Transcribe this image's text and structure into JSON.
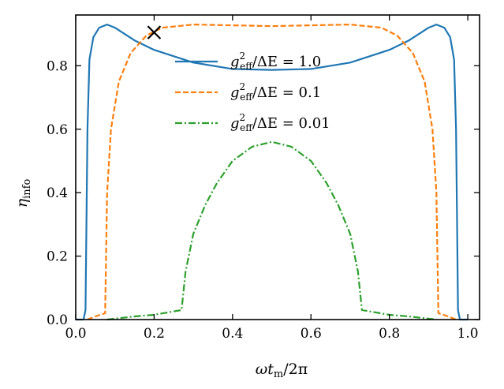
{
  "chart_data": {
    "type": "line",
    "xlabel": "ωt_m/2π",
    "ylabel": "η_info",
    "xlim": [
      0.0,
      1.03
    ],
    "ylim": [
      0.0,
      0.96
    ],
    "xticks": [
      0.0,
      0.2,
      0.4,
      0.6,
      0.8,
      1.0
    ],
    "xtick_labels": [
      "0.0",
      "0.2",
      "0.4",
      "0.6",
      "0.8",
      "1.0"
    ],
    "yticks": [
      0.0,
      0.2,
      0.4,
      0.6,
      0.8
    ],
    "ytick_labels": [
      "0.0",
      "0.2",
      "0.4",
      "0.6",
      "0.8"
    ],
    "grid": false,
    "legend_position": "top-right",
    "series": [
      {
        "name": "g_eff^2/ΔE = 1.0",
        "color": "#1f77b4",
        "dash": "solid",
        "points": [
          [
            0.0,
            0.0
          ],
          [
            0.02,
            0.0
          ],
          [
            0.025,
            0.03
          ],
          [
            0.03,
            0.6
          ],
          [
            0.035,
            0.82
          ],
          [
            0.045,
            0.89
          ],
          [
            0.06,
            0.92
          ],
          [
            0.08,
            0.93
          ],
          [
            0.1,
            0.92
          ],
          [
            0.15,
            0.88
          ],
          [
            0.2,
            0.85
          ],
          [
            0.3,
            0.81
          ],
          [
            0.4,
            0.79
          ],
          [
            0.5,
            0.787
          ],
          [
            0.6,
            0.79
          ],
          [
            0.7,
            0.81
          ],
          [
            0.8,
            0.85
          ],
          [
            0.85,
            0.88
          ],
          [
            0.9,
            0.92
          ],
          [
            0.92,
            0.93
          ],
          [
            0.94,
            0.92
          ],
          [
            0.955,
            0.89
          ],
          [
            0.965,
            0.82
          ],
          [
            0.97,
            0.6
          ],
          [
            0.975,
            0.03
          ],
          [
            0.98,
            0.0
          ],
          [
            1.0,
            0.0
          ]
        ]
      },
      {
        "name": "g_eff^2/ΔE = 0.1",
        "color": "#ff7f0e",
        "dash": "dashed",
        "points": [
          [
            0.03,
            0.0
          ],
          [
            0.05,
            0.01
          ],
          [
            0.075,
            0.02
          ],
          [
            0.08,
            0.4
          ],
          [
            0.09,
            0.6
          ],
          [
            0.11,
            0.75
          ],
          [
            0.14,
            0.84
          ],
          [
            0.18,
            0.895
          ],
          [
            0.22,
            0.92
          ],
          [
            0.3,
            0.93
          ],
          [
            0.5,
            0.925
          ],
          [
            0.7,
            0.93
          ],
          [
            0.78,
            0.92
          ],
          [
            0.82,
            0.895
          ],
          [
            0.86,
            0.84
          ],
          [
            0.89,
            0.75
          ],
          [
            0.91,
            0.6
          ],
          [
            0.92,
            0.4
          ],
          [
            0.925,
            0.02
          ],
          [
            0.95,
            0.01
          ],
          [
            0.97,
            0.0
          ]
        ]
      },
      {
        "name": "g_eff^2/ΔE = 0.01",
        "color": "#2ca02c",
        "dash": "dashdot",
        "points": [
          [
            0.08,
            0.0
          ],
          [
            0.15,
            0.01
          ],
          [
            0.2,
            0.015
          ],
          [
            0.27,
            0.03
          ],
          [
            0.28,
            0.15
          ],
          [
            0.3,
            0.27
          ],
          [
            0.33,
            0.36
          ],
          [
            0.36,
            0.43
          ],
          [
            0.4,
            0.5
          ],
          [
            0.45,
            0.545
          ],
          [
            0.5,
            0.56
          ],
          [
            0.55,
            0.545
          ],
          [
            0.6,
            0.5
          ],
          [
            0.64,
            0.43
          ],
          [
            0.67,
            0.36
          ],
          [
            0.7,
            0.27
          ],
          [
            0.72,
            0.15
          ],
          [
            0.73,
            0.03
          ],
          [
            0.8,
            0.015
          ],
          [
            0.85,
            0.01
          ],
          [
            0.92,
            0.0
          ]
        ]
      }
    ],
    "annotations": [
      {
        "type": "marker",
        "symbol": "x",
        "x": 0.2,
        "y": 0.905,
        "color": "#000000"
      }
    ]
  }
}
